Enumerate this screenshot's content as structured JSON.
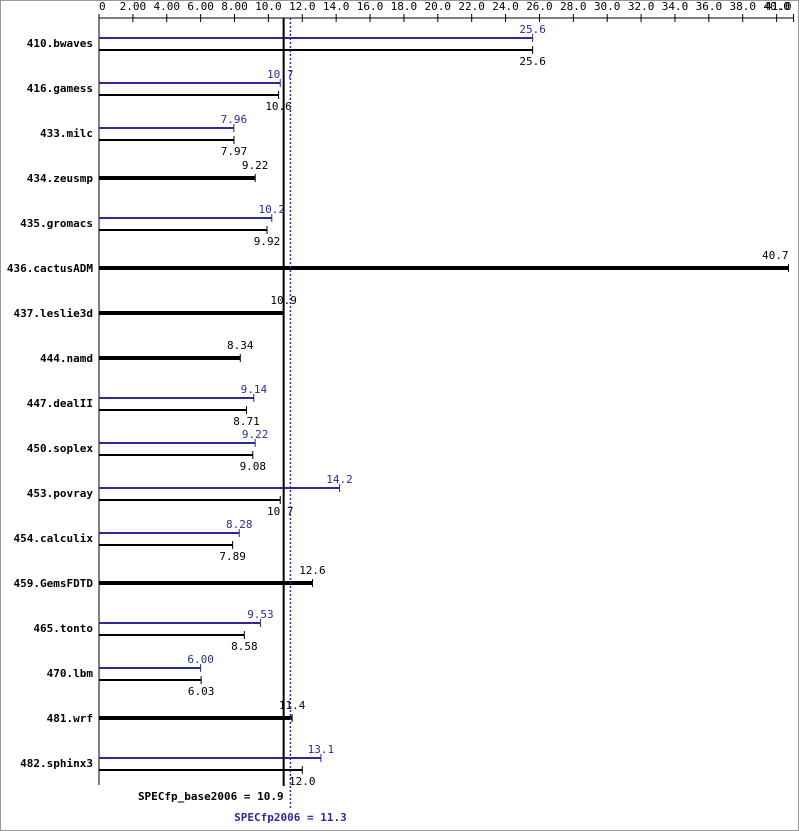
{
  "chart_data": {
    "type": "bar",
    "orientation": "horizontal",
    "categories": [
      "410.bwaves",
      "416.gamess",
      "433.milc",
      "434.zeusmp",
      "435.gromacs",
      "436.cactusADM",
      "437.leslie3d",
      "444.namd",
      "447.dealII",
      "450.soplex",
      "453.povray",
      "454.calculix",
      "459.GemsFDTD",
      "465.tonto",
      "470.lbm",
      "481.wrf",
      "482.sphinx3"
    ],
    "series": [
      {
        "name": "SPECfp2006",
        "color": "#2b2b99",
        "values": [
          25.6,
          10.7,
          7.96,
          null,
          10.2,
          null,
          null,
          null,
          9.14,
          9.22,
          14.2,
          8.28,
          null,
          9.53,
          6.0,
          null,
          13.1
        ],
        "value_labels": [
          "25.6",
          "10.7",
          "7.96",
          null,
          "10.2",
          null,
          null,
          null,
          "9.14",
          "9.22",
          "14.2",
          "8.28",
          null,
          "9.53",
          "6.00",
          null,
          "13.1"
        ]
      },
      {
        "name": "SPECfp_base2006",
        "color": "#000000",
        "values": [
          25.6,
          10.6,
          7.97,
          9.22,
          9.92,
          40.7,
          10.9,
          8.34,
          8.71,
          9.08,
          10.7,
          7.89,
          12.6,
          8.58,
          6.03,
          11.4,
          12.0
        ],
        "value_labels": [
          "25.6",
          "10.6",
          "7.97",
          "9.22",
          "9.92",
          "40.7",
          "10.9",
          "8.34",
          "8.71",
          "9.08",
          "10.7",
          "7.89",
          "12.6",
          "8.58",
          "6.03",
          "11.4",
          "12.0"
        ]
      }
    ],
    "xlim": [
      0,
      41
    ],
    "xticks": [
      0,
      {
        "value": 2,
        "label": "2.00"
      },
      {
        "value": 4,
        "label": "4.00"
      },
      {
        "value": 6,
        "label": "6.00"
      },
      {
        "value": 8,
        "label": "8.00"
      },
      {
        "value": 10,
        "label": "10.0"
      },
      {
        "value": 12,
        "label": "12.0"
      },
      {
        "value": 14,
        "label": "14.0"
      },
      {
        "value": 16,
        "label": "16.0"
      },
      {
        "value": 18,
        "label": "18.0"
      },
      {
        "value": 20,
        "label": "20.0"
      },
      {
        "value": 22,
        "label": "22.0"
      },
      {
        "value": 24,
        "label": "24.0"
      },
      {
        "value": 26,
        "label": "26.0"
      },
      {
        "value": 28,
        "label": "28.0"
      },
      {
        "value": 30,
        "label": "30.0"
      },
      {
        "value": 32,
        "label": "32.0"
      },
      {
        "value": 34,
        "label": "34.0"
      },
      {
        "value": 36,
        "label": "36.0"
      },
      {
        "value": 38,
        "label": "38.0"
      },
      {
        "value": 40,
        "label": "40.0"
      },
      {
        "value": 41,
        "label": "41.0"
      }
    ],
    "reference_lines": [
      {
        "label": "SPECfp_base2006 = 10.9",
        "value": 10.9,
        "color": "#000000",
        "dashed": false
      },
      {
        "label": "SPECfp2006 = 11.3",
        "value": 11.3,
        "color": "#2b2b99",
        "dashed": true
      }
    ]
  }
}
